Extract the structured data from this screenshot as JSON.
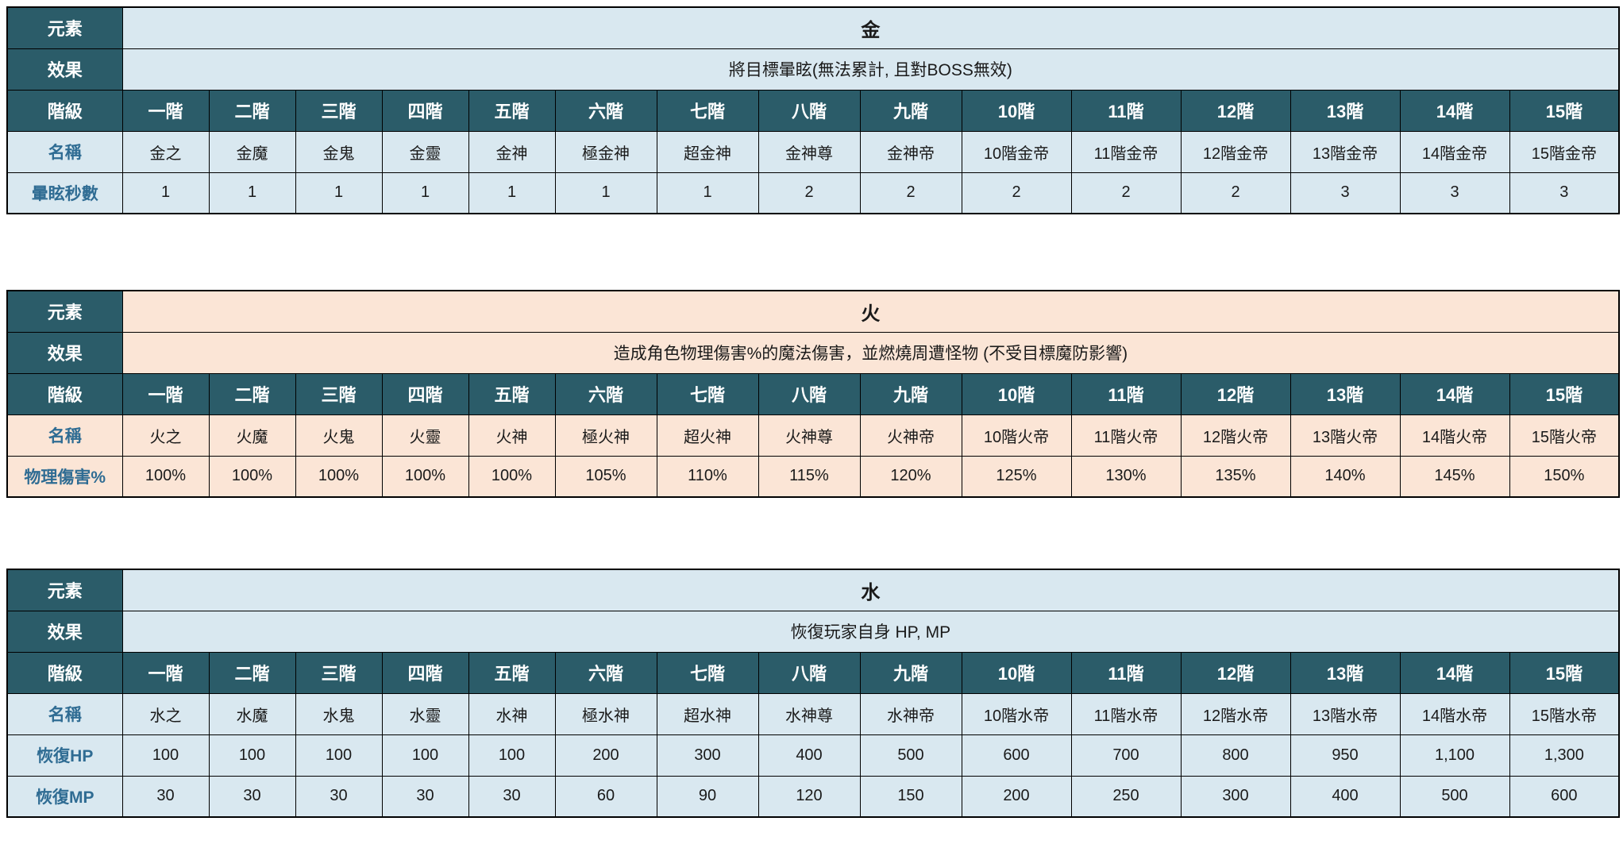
{
  "theme": {
    "header_bg": "#2B5C69",
    "label_text": "#2F6C93",
    "border_color": "#000000"
  },
  "tables": [
    {
      "id": "gold",
      "element_label": "元素",
      "element_value": "金",
      "effect_label": "效果",
      "effect_value": "將目標暈眩(無法累計, 且對BOSS無效)",
      "tier_label": "階級",
      "tiers": [
        "一階",
        "二階",
        "三階",
        "四階",
        "五階",
        "六階",
        "七階",
        "八階",
        "九階",
        "10階",
        "11階",
        "12階",
        "13階",
        "14階",
        "15階"
      ],
      "rows": [
        {
          "label": "名稱",
          "values": [
            "金之",
            "金魔",
            "金鬼",
            "金靈",
            "金神",
            "極金神",
            "超金神",
            "金神尊",
            "金神帝",
            "10階金帝",
            "11階金帝",
            "12階金帝",
            "13階金帝",
            "14階金帝",
            "15階金帝"
          ]
        },
        {
          "label": "暈眩秒數",
          "values": [
            "1",
            "1",
            "1",
            "1",
            "1",
            "1",
            "1",
            "2",
            "2",
            "2",
            "2",
            "2",
            "3",
            "3",
            "3"
          ]
        }
      ],
      "theme": {
        "body_bg": "#D9E8F0"
      }
    },
    {
      "id": "fire",
      "element_label": "元素",
      "element_value": "火",
      "effect_label": "效果",
      "effect_value": "造成角色物理傷害%的魔法傷害，並燃燒周遭怪物 (不受目標魔防影響)",
      "tier_label": "階級",
      "tiers": [
        "一階",
        "二階",
        "三階",
        "四階",
        "五階",
        "六階",
        "七階",
        "八階",
        "九階",
        "10階",
        "11階",
        "12階",
        "13階",
        "14階",
        "15階"
      ],
      "rows": [
        {
          "label": "名稱",
          "values": [
            "火之",
            "火魔",
            "火鬼",
            "火靈",
            "火神",
            "極火神",
            "超火神",
            "火神尊",
            "火神帝",
            "10階火帝",
            "11階火帝",
            "12階火帝",
            "13階火帝",
            "14階火帝",
            "15階火帝"
          ]
        },
        {
          "label": "物理傷害%",
          "values": [
            "100%",
            "100%",
            "100%",
            "100%",
            "100%",
            "105%",
            "110%",
            "115%",
            "120%",
            "125%",
            "130%",
            "135%",
            "140%",
            "145%",
            "150%"
          ]
        }
      ],
      "theme": {
        "body_bg": "#FBE5D6"
      }
    },
    {
      "id": "water",
      "element_label": "元素",
      "element_value": "水",
      "effect_label": "效果",
      "effect_value": "恢復玩家自身 HP, MP",
      "tier_label": "階級",
      "tiers": [
        "一階",
        "二階",
        "三階",
        "四階",
        "五階",
        "六階",
        "七階",
        "八階",
        "九階",
        "10階",
        "11階",
        "12階",
        "13階",
        "14階",
        "15階"
      ],
      "rows": [
        {
          "label": "名稱",
          "values": [
            "水之",
            "水魔",
            "水鬼",
            "水靈",
            "水神",
            "極水神",
            "超水神",
            "水神尊",
            "水神帝",
            "10階水帝",
            "11階水帝",
            "12階水帝",
            "13階水帝",
            "14階水帝",
            "15階水帝"
          ]
        },
        {
          "label": "恢復HP",
          "values": [
            "100",
            "100",
            "100",
            "100",
            "100",
            "200",
            "300",
            "400",
            "500",
            "600",
            "700",
            "800",
            "950",
            "1,100",
            "1,300"
          ]
        },
        {
          "label": "恢復MP",
          "values": [
            "30",
            "30",
            "30",
            "30",
            "30",
            "60",
            "90",
            "120",
            "150",
            "200",
            "250",
            "300",
            "400",
            "500",
            "600"
          ]
        }
      ],
      "theme": {
        "body_bg": "#D9E8F0"
      }
    }
  ]
}
